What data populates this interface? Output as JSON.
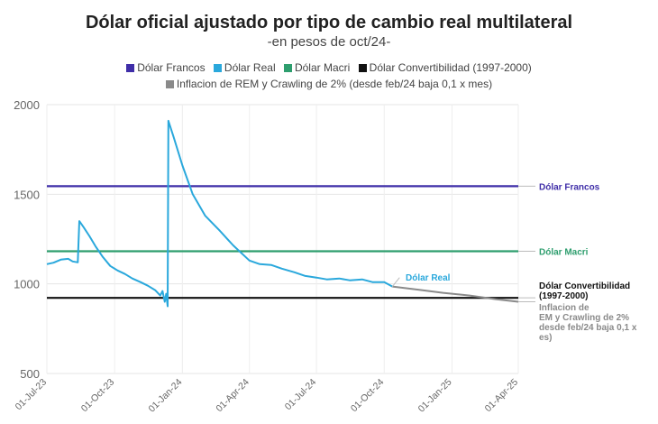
{
  "chart_data": {
    "type": "line",
    "title": "Dólar oficial ajustado por tipo de cambio real multilateral",
    "subtitle": "-en pesos de oct/24-",
    "xlabel": "",
    "ylabel": "",
    "ylim": [
      500,
      2000
    ],
    "xlim": [
      "2023-07-01",
      "2025-04-01"
    ],
    "yticks": [
      500,
      1000,
      1500,
      2000
    ],
    "xticks": [
      "01-Jul-23",
      "01-Oct-23",
      "01-Jan-24",
      "01-Apr-24",
      "01-Jul-24",
      "01-Oct-24",
      "01-Jan-25",
      "01-Apr-25"
    ],
    "xtick_dates": [
      "2023-07-01",
      "2023-10-01",
      "2024-01-01",
      "2024-04-01",
      "2024-07-01",
      "2024-10-01",
      "2025-01-01",
      "2025-04-01"
    ],
    "grid": true,
    "legend_position": "top",
    "legend": [
      {
        "label": "Dólar Francos",
        "color": "#3f2ea8"
      },
      {
        "label": "Dólar Real",
        "color": "#2aa8dc"
      },
      {
        "label": "Dólar Macri",
        "color": "#2e9e6e"
      },
      {
        "label": "Dólar Convertibilidad (1997-2000)",
        "color": "#111111"
      },
      {
        "label": "Inflacion de REM y Crawling de 2% (desde feb/24 baja 0,1 x mes)",
        "color": "#8a8a8a"
      }
    ],
    "series": [
      {
        "name": "Dólar Francos",
        "color": "#3f2ea8",
        "end_label": "Dólar Francos",
        "x": [
          "2023-07-01",
          "2025-04-01"
        ],
        "y": [
          1545,
          1545
        ]
      },
      {
        "name": "Dólar Macri",
        "color": "#2e9e6e",
        "end_label": "Dólar Macri",
        "x": [
          "2023-07-01",
          "2025-04-01"
        ],
        "y": [
          1182,
          1182
        ]
      },
      {
        "name": "Dólar Convertibilidad (1997-2000)",
        "color": "#111111",
        "end_label": "Dólar Convertibilidad (1997-2000)",
        "x": [
          "2023-07-01",
          "2025-04-01"
        ],
        "y": [
          922,
          922
        ]
      },
      {
        "name": "Inflacion de REM y Crawling de 2% (desde feb/24 baja 0,1 x mes)",
        "color": "#8a8a8a",
        "end_label": "Inflacion de REM y Crawling de 2% (desde feb/24 baja 0,1 x mes)",
        "x": [
          "2024-10-12",
          "2024-11-15",
          "2024-12-20",
          "2025-01-25",
          "2025-03-01",
          "2025-04-01"
        ],
        "y": [
          985,
          968,
          950,
          935,
          915,
          900
        ]
      },
      {
        "name": "Dólar Real",
        "color": "#2aa8dc",
        "end_label": "Dólar Real",
        "x": [
          "2023-07-01",
          "2023-07-10",
          "2023-07-20",
          "2023-07-30",
          "2023-08-05",
          "2023-08-12",
          "2023-08-14",
          "2023-08-20",
          "2023-08-28",
          "2023-09-05",
          "2023-09-15",
          "2023-09-25",
          "2023-10-05",
          "2023-10-15",
          "2023-10-25",
          "2023-11-05",
          "2023-11-15",
          "2023-11-25",
          "2023-12-02",
          "2023-12-05",
          "2023-12-08",
          "2023-12-10",
          "2023-12-12",
          "2023-12-13",
          "2023-12-20",
          "2024-01-01",
          "2024-01-15",
          "2024-02-01",
          "2024-02-20",
          "2024-03-10",
          "2024-04-01",
          "2024-04-15",
          "2024-05-01",
          "2024-05-15",
          "2024-06-01",
          "2024-06-15",
          "2024-07-01",
          "2024-07-15",
          "2024-08-01",
          "2024-08-15",
          "2024-09-01",
          "2024-09-15",
          "2024-10-01",
          "2024-10-12"
        ],
        "y": [
          1110,
          1118,
          1135,
          1140,
          1125,
          1120,
          1350,
          1315,
          1265,
          1210,
          1150,
          1100,
          1075,
          1055,
          1030,
          1010,
          990,
          965,
          935,
          960,
          900,
          945,
          875,
          1910,
          1820,
          1660,
          1500,
          1380,
          1300,
          1215,
          1130,
          1110,
          1105,
          1085,
          1065,
          1045,
          1035,
          1025,
          1030,
          1020,
          1025,
          1010,
          1010,
          985
        ]
      }
    ]
  }
}
